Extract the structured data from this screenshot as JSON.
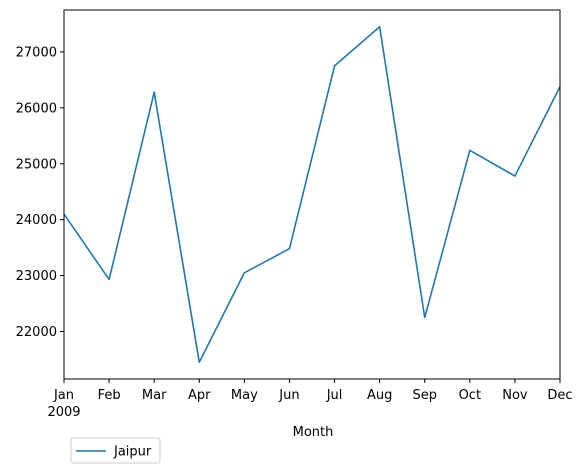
{
  "chart_data": {
    "type": "line",
    "categories": [
      "Jan",
      "Feb",
      "Mar",
      "Apr",
      "May",
      "Jun",
      "Jul",
      "Aug",
      "Sep",
      "Oct",
      "Nov",
      "Dec"
    ],
    "year_label": "2009",
    "series": [
      {
        "name": "Jaipur",
        "color": "#1f77b4",
        "values": [
          24100,
          22930,
          26280,
          21450,
          23050,
          23480,
          26750,
          27450,
          22250,
          25240,
          24780,
          26380
        ]
      }
    ],
    "yticks": [
      22000,
      23000,
      24000,
      25000,
      26000,
      27000
    ],
    "ylim": [
      21150,
      27750
    ],
    "xlabel": "Month",
    "ylabel": "",
    "grid": false,
    "legend_position": "below-left"
  }
}
